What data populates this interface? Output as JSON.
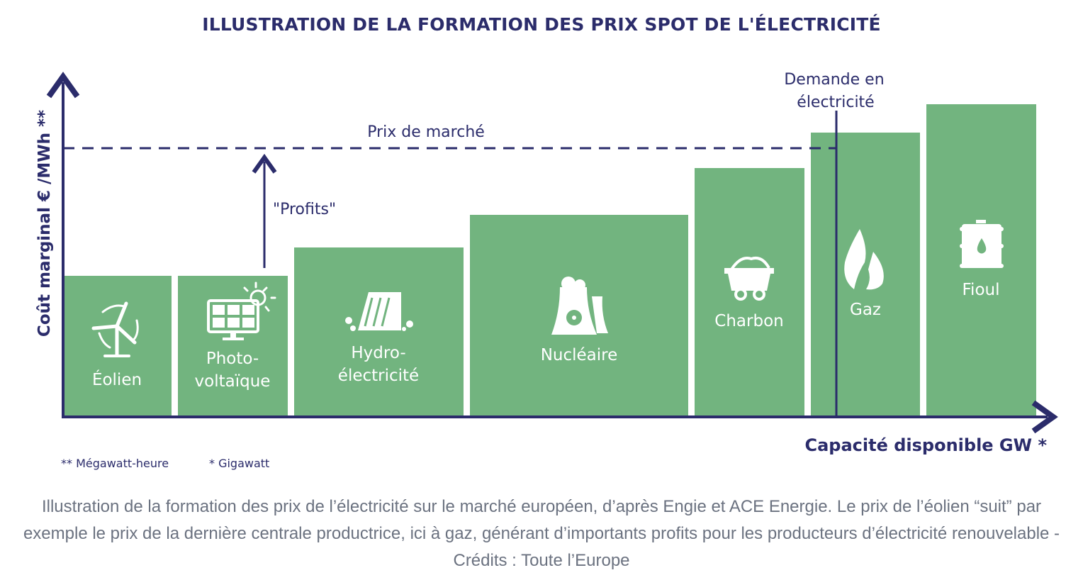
{
  "title": "ILLUSTRATION DE LA FORMATION DES PRIX SPOT DE L'ÉLECTRICITÉ",
  "colors": {
    "bar": "#72b47f",
    "axis": "#2b2c6b",
    "caption": "#6b7280"
  },
  "chart_data": {
    "type": "bar",
    "title": "ILLUSTRATION DE LA FORMATION DES PRIX SPOT DE L'ÉLECTRICITÉ",
    "xlabel": "Capacité disponible GW *",
    "ylabel": "Coût marginal € /MWh **",
    "grid": false,
    "categories": [
      {
        "line1": "Éolien",
        "line2": "",
        "icon": "wind-turbine-icon"
      },
      {
        "line1": "Photo-",
        "line2": "voltaïque",
        "icon": "solar-panel-icon"
      },
      {
        "line1": "Hydro-",
        "line2": "électricité",
        "icon": "hydro-dam-icon"
      },
      {
        "line1": "Nucléaire",
        "line2": "",
        "icon": "nuclear-plant-icon"
      },
      {
        "line1": "Charbon",
        "line2": "",
        "icon": "coal-cart-icon"
      },
      {
        "line1": "Gaz",
        "line2": "",
        "icon": "flame-icon"
      },
      {
        "line1": "Fioul",
        "line2": "",
        "icon": "oil-barrel-icon"
      }
    ],
    "annotations": {
      "market_price": "Prix de marché",
      "profits": "\"Profits\"",
      "demand_line1": "Demande en",
      "demand_line2": "électricité"
    }
  },
  "footnotes": {
    "mwh": "** Mégawatt-heure",
    "gw": "* Gigawatt"
  },
  "caption": "Illustration de la formation des prix de l’électricité sur le marché européen, d’après Engie et ACE Energie. Le prix de l’éolien “suit” par exemple le prix de la dernière centrale productrice, ici à gaz, générant d’importants profits pour les producteurs d’électricité renouvelable - Crédits : Toute l’Europe"
}
